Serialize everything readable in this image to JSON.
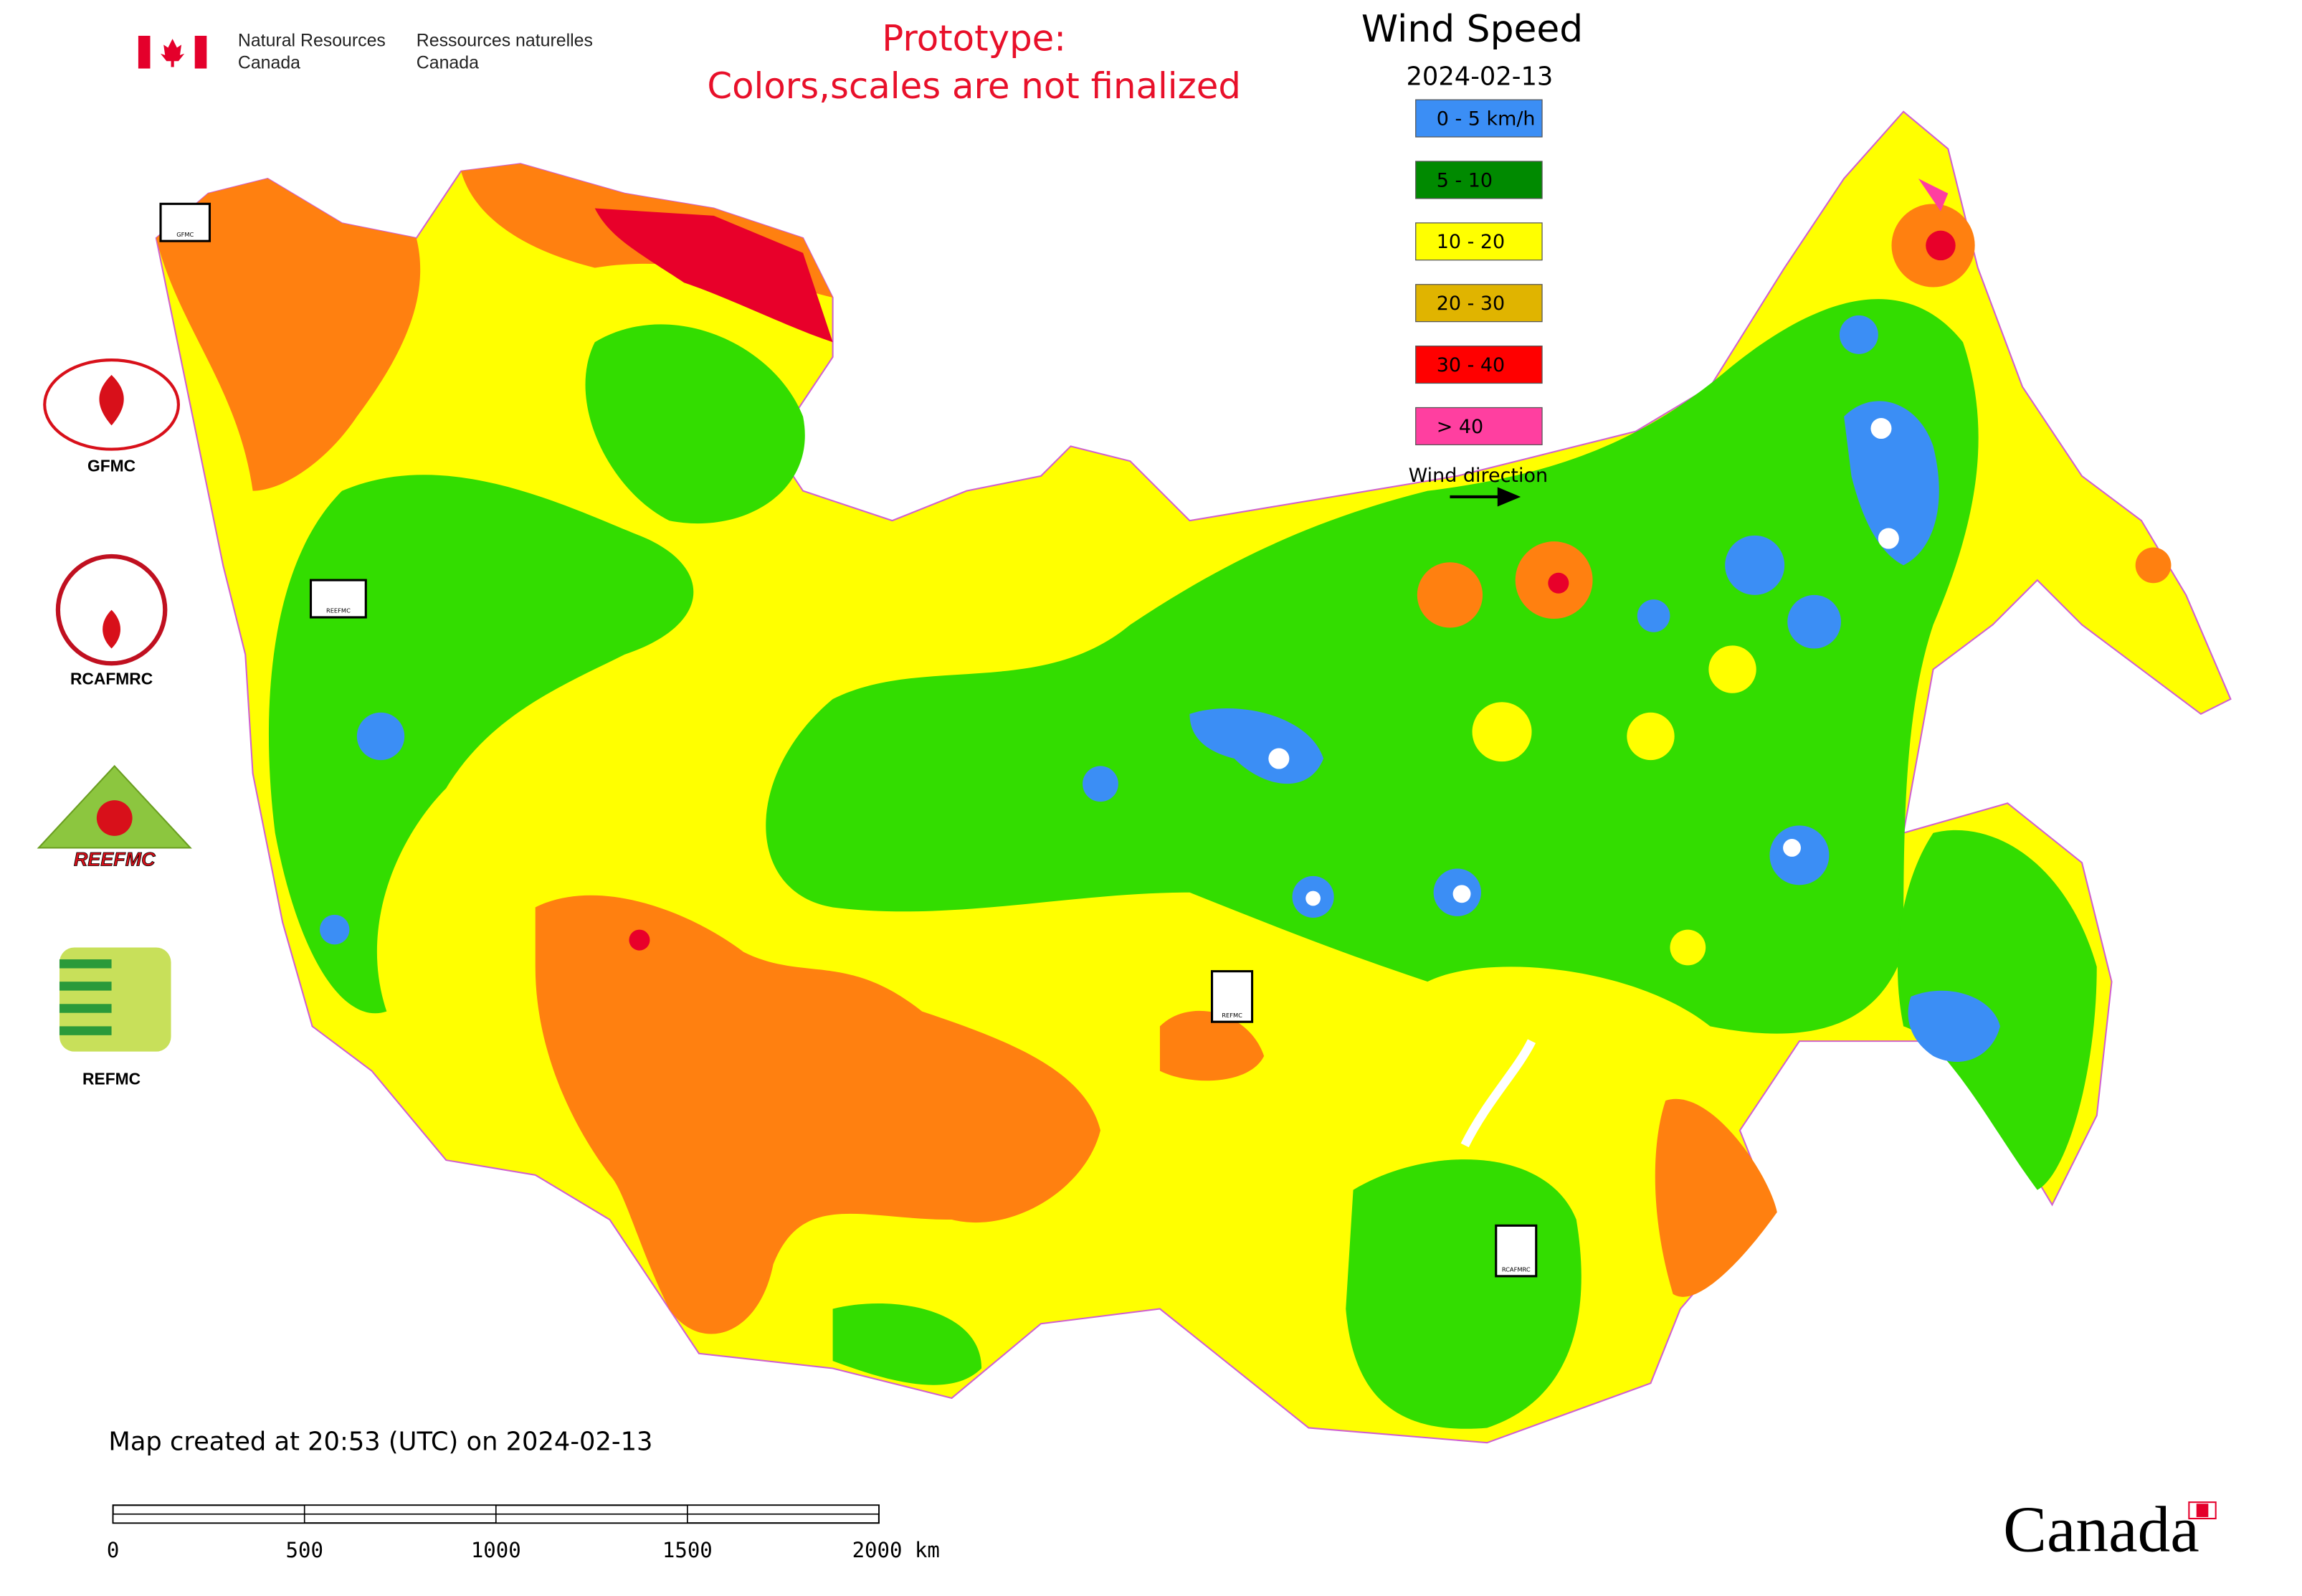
{
  "header": {
    "dept_en_1": "Natural Resources",
    "dept_en_2": "Canada",
    "dept_fr_1": "Ressources naturelles",
    "dept_fr_2": "Canada"
  },
  "notice": [
    "Prototype:",
    "Colors,scales are not finalized"
  ],
  "legend": {
    "title": "Wind Speed",
    "date": "2024-02-13",
    "items": [
      {
        "label": "0 - 5 km/h",
        "color": "#3b8ef5"
      },
      {
        "label": "5 - 10",
        "color": "#008a00"
      },
      {
        "label": "10 - 20",
        "color": "#ffff00"
      },
      {
        "label": "20 - 30",
        "color": "#e0b400"
      },
      {
        "label": "30 - 40",
        "color": "#ff0000"
      },
      {
        "label": "> 40",
        "color": "#ff3fa0"
      }
    ],
    "arrow_label": "Wind direction"
  },
  "logos": [
    "GFMC",
    "RCAFMRC",
    "REEFMC",
    "REFMC"
  ],
  "map_markers": [
    "GFMC",
    "REEFMC",
    "REFMC",
    "RCAFMRC"
  ],
  "footer": {
    "created": "Map created at 20:53 (UTC) on 2024-02-13",
    "scale_labels": [
      "0",
      "500",
      "1000",
      "1500",
      "2000 km"
    ],
    "wordmark": "Canada"
  }
}
